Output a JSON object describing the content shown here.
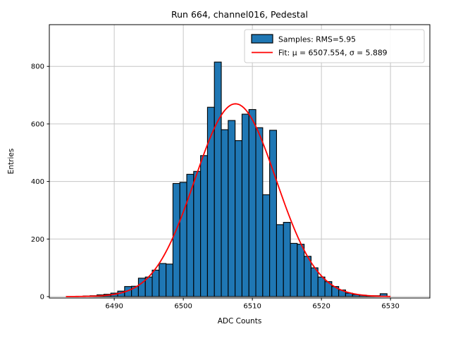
{
  "chart_data": {
    "type": "histogram",
    "title": "Run 664, channel016, Pedestal",
    "xlabel": "ADC Counts",
    "ylabel": "Entries",
    "bin_width": 1,
    "bar_color": "#1f77b4",
    "bar_edge_color": "#000000",
    "grid_color": "#c6c6c6",
    "bins": [
      {
        "center": 6485,
        "count": 1
      },
      {
        "center": 6486,
        "count": 2
      },
      {
        "center": 6487,
        "count": 3
      },
      {
        "center": 6488,
        "count": 6
      },
      {
        "center": 6489,
        "count": 8
      },
      {
        "center": 6490,
        "count": 12
      },
      {
        "center": 6491,
        "count": 19
      },
      {
        "center": 6492,
        "count": 35
      },
      {
        "center": 6493,
        "count": 36
      },
      {
        "center": 6494,
        "count": 64
      },
      {
        "center": 6495,
        "count": 68
      },
      {
        "center": 6496,
        "count": 92
      },
      {
        "center": 6497,
        "count": 115
      },
      {
        "center": 6498,
        "count": 113
      },
      {
        "center": 6499,
        "count": 393
      },
      {
        "center": 6500,
        "count": 397
      },
      {
        "center": 6501,
        "count": 425
      },
      {
        "center": 6502,
        "count": 435
      },
      {
        "center": 6503,
        "count": 490
      },
      {
        "center": 6504,
        "count": 658
      },
      {
        "center": 6505,
        "count": 815
      },
      {
        "center": 6506,
        "count": 580
      },
      {
        "center": 6507,
        "count": 612
      },
      {
        "center": 6508,
        "count": 542
      },
      {
        "center": 6509,
        "count": 634
      },
      {
        "center": 6510,
        "count": 650
      },
      {
        "center": 6511,
        "count": 587
      },
      {
        "center": 6512,
        "count": 354
      },
      {
        "center": 6513,
        "count": 578
      },
      {
        "center": 6514,
        "count": 250
      },
      {
        "center": 6515,
        "count": 258
      },
      {
        "center": 6516,
        "count": 185
      },
      {
        "center": 6517,
        "count": 182
      },
      {
        "center": 6518,
        "count": 140
      },
      {
        "center": 6519,
        "count": 100
      },
      {
        "center": 6520,
        "count": 68
      },
      {
        "center": 6521,
        "count": 52
      },
      {
        "center": 6522,
        "count": 35
      },
      {
        "center": 6523,
        "count": 23
      },
      {
        "center": 6524,
        "count": 12
      },
      {
        "center": 6525,
        "count": 7
      },
      {
        "center": 6526,
        "count": 5
      },
      {
        "center": 6527,
        "count": 3
      },
      {
        "center": 6528,
        "count": 3
      },
      {
        "center": 6529,
        "count": 10
      }
    ],
    "fit": {
      "type": "gaussian",
      "mu": 6507.554,
      "sigma": 5.889,
      "amplitude": 670,
      "range": [
        6483,
        6530
      ],
      "color": "#ff0000"
    },
    "stats": {
      "rms": 5.95
    },
    "axes": {
      "xlim": [
        6480.6,
        6535.7
      ],
      "ylim": [
        -5,
        945
      ],
      "x_ticks": [
        6490,
        6500,
        6510,
        6520,
        6530
      ],
      "y_ticks": [
        0,
        200,
        400,
        600,
        800
      ],
      "grid": true
    },
    "legend": {
      "position": "upper-right",
      "entries": [
        {
          "swatch": "patch",
          "color": "#1f77b4",
          "label": "Samples: RMS=5.95"
        },
        {
          "swatch": "line",
          "color": "#ff0000",
          "label": "Fit: μ = 6507.554, σ = 5.889"
        }
      ]
    }
  }
}
